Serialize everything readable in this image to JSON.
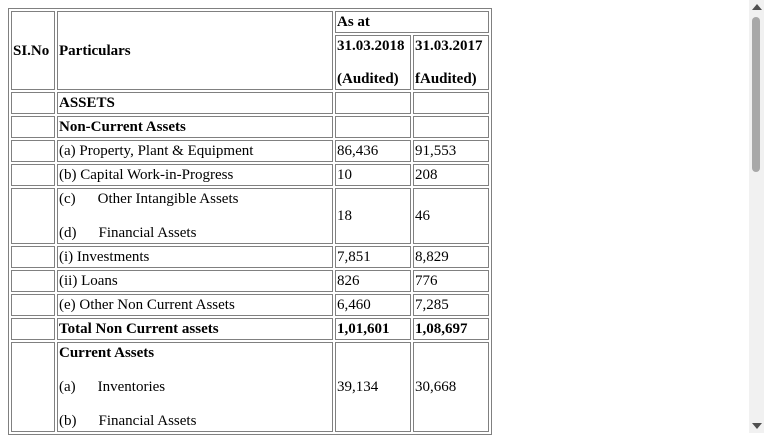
{
  "header": {
    "slno": "SI.No",
    "particulars": "Particulars",
    "as_at": "As at",
    "col1_date": "31.03.2018",
    "col1_status": "(Audited)",
    "col2_date": "31.03.2017",
    "col2_status": "fAudited)"
  },
  "rows": {
    "assets": "ASSETS",
    "non_current_assets": "Non-Current Assets",
    "ppe": {
      "label": "(a) Property, Plant & Equipment",
      "v1": "86,436",
      "v2": "91,553"
    },
    "cwip": {
      "label": "(b) Capital Work-in-Progress",
      "v1": "10",
      "v2": "208"
    },
    "intangible": {
      "marker": "(c)",
      "label": "Other Intangible Assets",
      "v1": "18",
      "v2": "46"
    },
    "fin_assets_d": {
      "marker": "(d)",
      "label": "Financial Assets"
    },
    "investments": {
      "label": "(i) Investments",
      "v1": "7,851",
      "v2": "8,829"
    },
    "loans": {
      "label": "(ii) Loans",
      "v1": "826",
      "v2": "776"
    },
    "other_nca": {
      "label": "(e) Other Non Current Assets",
      "v1": "6,460",
      "v2": "7,285"
    },
    "total_nca": {
      "label": "Total Non Current assets",
      "v1": "1,01,601",
      "v2": "1,08,697"
    },
    "current_assets": "Current Assets",
    "inventories": {
      "marker": "(a)",
      "label": "Inventories",
      "v1": "39,134",
      "v2": "30,668"
    },
    "fin_assets_b": {
      "marker": "(b)",
      "label": "Financial Assets"
    }
  }
}
